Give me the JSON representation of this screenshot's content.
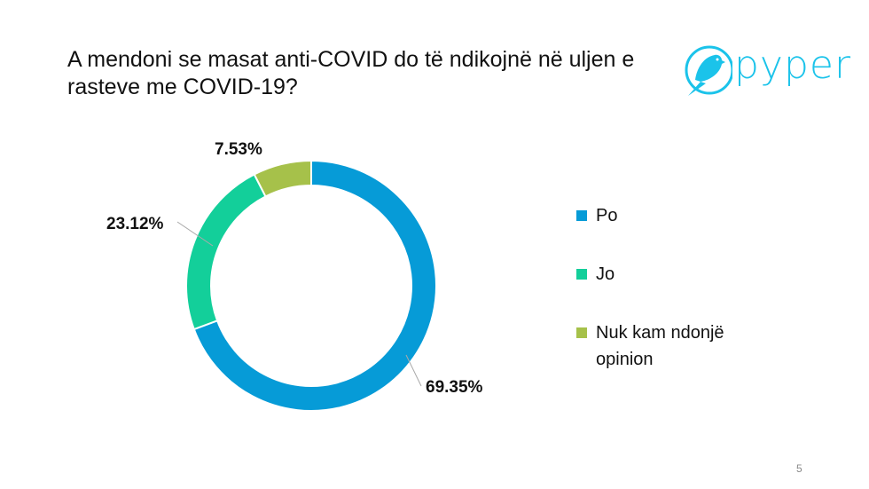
{
  "title": "A mendoni se masat anti-COVID do të ndikojnë në uljen e rasteve me COVID-19?",
  "logo": {
    "text": "pyper",
    "icon": "bird-icon",
    "color": "#1bc3ea"
  },
  "page_number": "5",
  "chart_data": {
    "type": "pie",
    "variant": "donut",
    "title": "A mendoni se masat anti-COVID do të ndikojnë në uljen e rasteve me COVID-19?",
    "categories": [
      "Po",
      "Jo",
      "Nuk kam ndonjë opinion"
    ],
    "values": [
      69.35,
      23.12,
      7.53
    ],
    "labels": [
      "69.35%",
      "23.12%",
      "7.53%"
    ],
    "colors": [
      "#069bd7",
      "#13cf9a",
      "#a6c14a"
    ],
    "legend_position": "right"
  },
  "legend": [
    {
      "label": "Po",
      "color": "#069bd7"
    },
    {
      "label": "Jo",
      "color": "#13cf9a"
    },
    {
      "label": "Nuk kam ndonjë opinion",
      "color": "#a6c14a"
    }
  ]
}
